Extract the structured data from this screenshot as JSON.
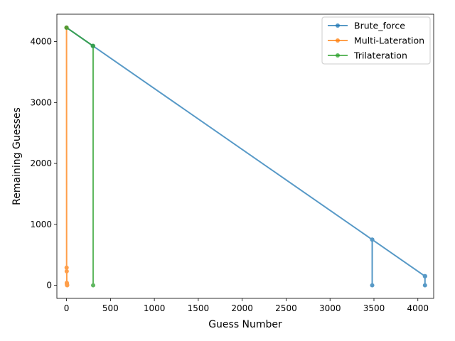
{
  "chart_data": {
    "type": "line",
    "xlabel": "Guess Number",
    "ylabel": "Remaining Guesses",
    "xlim": [
      -110,
      4180
    ],
    "ylim": [
      -215,
      4450
    ],
    "xticks": [
      0,
      500,
      1000,
      1500,
      2000,
      2500,
      3000,
      3500,
      4000
    ],
    "yticks": [
      0,
      1000,
      2000,
      3000,
      4000
    ],
    "grid": false,
    "legend_position": "top-right",
    "series": [
      {
        "name": "Brute_force",
        "color": "#1f77b4",
        "x": [
          0,
          300,
          3480,
          3480,
          3481,
          4081,
          4081,
          4081,
          4082
        ],
        "y": [
          4230,
          3930,
          750,
          0,
          749,
          149,
          0,
          149,
          148
        ]
      },
      {
        "name": "Multi-Lateration",
        "color": "#ff7f0e",
        "x": [
          0,
          1,
          2,
          3,
          4,
          5,
          6,
          7
        ],
        "y": [
          4230,
          290,
          230,
          40,
          25,
          10,
          5,
          0
        ]
      },
      {
        "name": "Trilateration",
        "color": "#2ca02c",
        "x": [
          0,
          300,
          301,
          302,
          303,
          304,
          0
        ],
        "y": [
          4230,
          3930,
          3929,
          3928,
          0,
          3927,
          4230
        ]
      }
    ]
  }
}
